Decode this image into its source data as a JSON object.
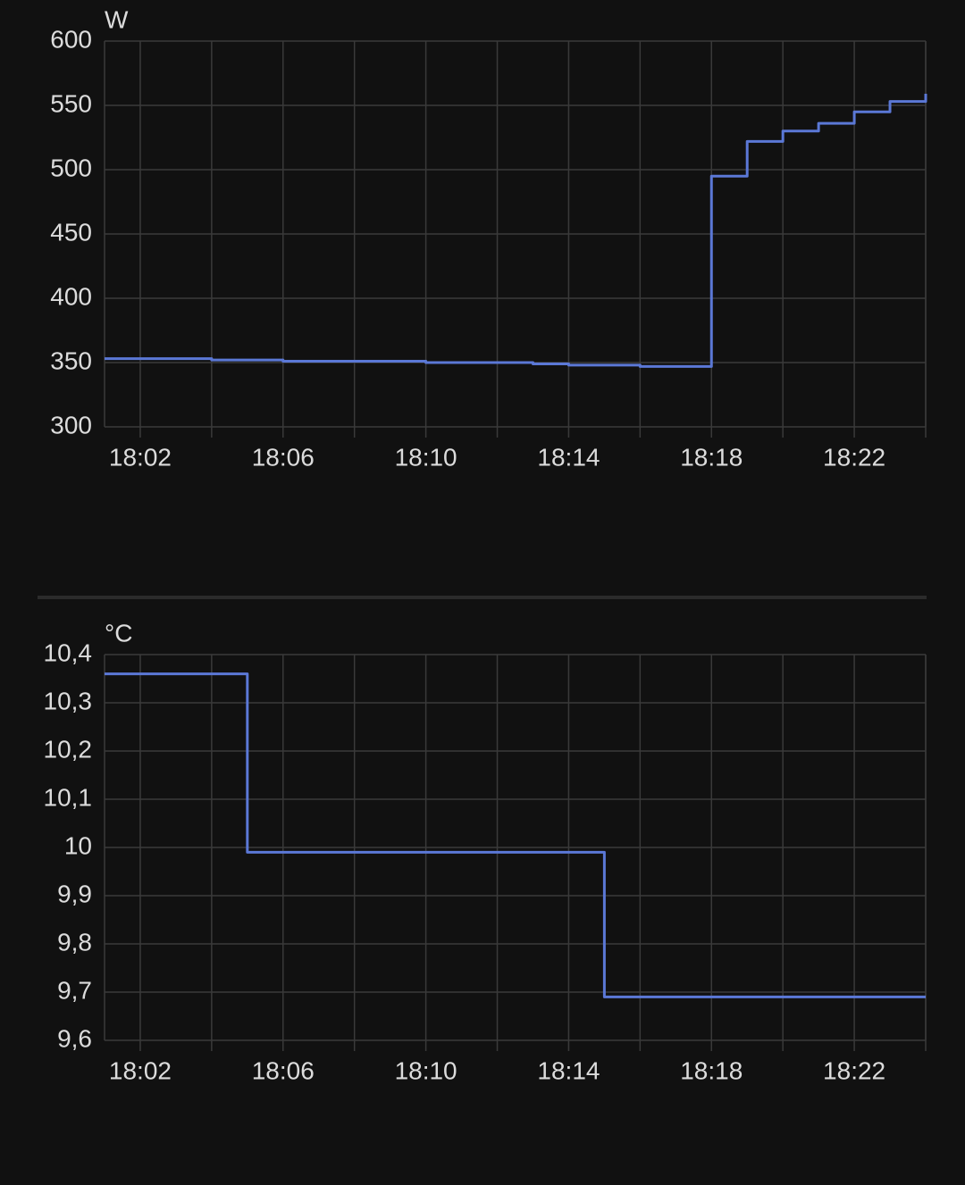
{
  "chart_data": [
    {
      "type": "line",
      "unit": "W",
      "step": true,
      "color": "#5b78d6",
      "grid": true,
      "x": [
        "18:01",
        "18:02",
        "18:03",
        "18:04",
        "18:05",
        "18:06",
        "18:07",
        "18:08",
        "18:09",
        "18:10",
        "18:11",
        "18:12",
        "18:13",
        "18:14",
        "18:15",
        "18:16",
        "18:17",
        "18:18",
        "18:19",
        "18:20",
        "18:21",
        "18:22",
        "18:23",
        "18:24"
      ],
      "values": [
        353,
        353,
        353,
        352,
        352,
        351,
        351,
        351,
        351,
        350,
        350,
        350,
        349,
        348,
        348,
        347,
        347,
        495,
        522,
        530,
        536,
        545,
        553,
        559
      ],
      "xlim": [
        "18:01",
        "18:24"
      ],
      "xticks": [
        "18:02",
        "18:06",
        "18:10",
        "18:14",
        "18:18",
        "18:22"
      ],
      "xgrid": [
        "18:02",
        "18:04",
        "18:06",
        "18:08",
        "18:10",
        "18:12",
        "18:14",
        "18:16",
        "18:18",
        "18:20",
        "18:22",
        "18:24"
      ],
      "ylim": [
        300,
        600
      ],
      "yticks": [
        300,
        350,
        400,
        450,
        500,
        550,
        600
      ]
    },
    {
      "type": "line",
      "unit": "°C",
      "step": true,
      "color": "#5b78d6",
      "grid": true,
      "x": [
        "18:01",
        "18:02",
        "18:03",
        "18:04",
        "18:05",
        "18:06",
        "18:07",
        "18:08",
        "18:09",
        "18:10",
        "18:11",
        "18:12",
        "18:13",
        "18:14",
        "18:15",
        "18:16",
        "18:17",
        "18:18",
        "18:19",
        "18:20",
        "18:21",
        "18:22",
        "18:23",
        "18:24"
      ],
      "values": [
        10.36,
        10.36,
        10.36,
        10.36,
        9.99,
        9.99,
        9.99,
        9.99,
        9.99,
        9.99,
        9.99,
        9.99,
        9.99,
        9.99,
        9.69,
        9.69,
        9.69,
        9.69,
        9.69,
        9.69,
        9.69,
        9.69,
        9.69,
        9.69
      ],
      "xlim": [
        "18:01",
        "18:24"
      ],
      "xticks": [
        "18:02",
        "18:06",
        "18:10",
        "18:14",
        "18:18",
        "18:22"
      ],
      "xgrid": [
        "18:02",
        "18:04",
        "18:06",
        "18:08",
        "18:10",
        "18:12",
        "18:14",
        "18:16",
        "18:18",
        "18:20",
        "18:22",
        "18:24"
      ],
      "ylim": [
        9.6,
        10.4
      ],
      "yticks": [
        {
          "value": 9.6,
          "label": "9,6"
        },
        {
          "value": 9.7,
          "label": "9,7"
        },
        {
          "value": 9.8,
          "label": "9,8"
        },
        {
          "value": 9.9,
          "label": "9,9"
        },
        10,
        {
          "value": 10.1,
          "label": "10,1"
        },
        {
          "value": 10.2,
          "label": "10,2"
        },
        {
          "value": 10.3,
          "label": "10,3"
        },
        {
          "value": 10.4,
          "label": "10,4"
        }
      ]
    }
  ]
}
